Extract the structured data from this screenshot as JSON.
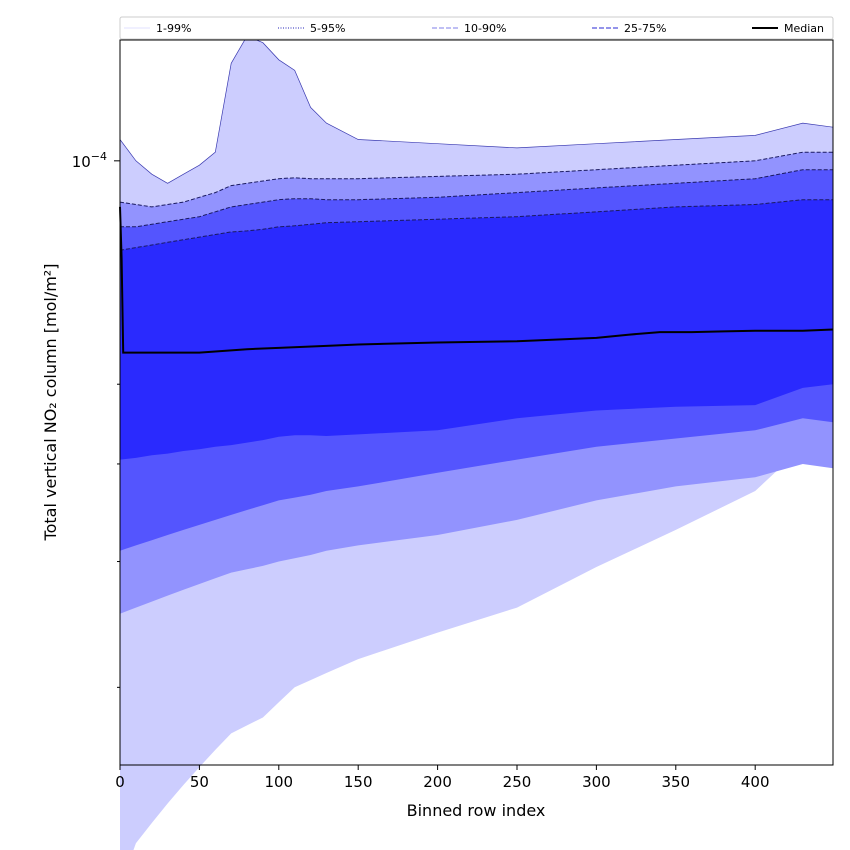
{
  "chart_data": {
    "type": "area",
    "xlabel": "Binned row index",
    "ylabel": "Total vertical NO₂ column [mol/m²]",
    "xlim": [
      0,
      449
    ],
    "ylim_log10": [
      -4.6,
      -3.88
    ],
    "y_scale": "log",
    "y_tick_label": {
      "base": "10",
      "exponent": "−4",
      "value": 0.0001
    },
    "x_ticks": [
      "0",
      "50",
      "100",
      "150",
      "200",
      "250",
      "300",
      "350",
      "400"
    ],
    "legend_placement": "top (above plot)",
    "legend": [
      {
        "label": "1-99%",
        "color": "#e6e6ff",
        "style": "solid"
      },
      {
        "label": "5-95%",
        "color": "#5050c8",
        "style": "dotted"
      },
      {
        "label": "10-90%",
        "color": "#9999ee",
        "style": "dashed"
      },
      {
        "label": "25-75%",
        "color": "#5555dd",
        "style": "dashed"
      },
      {
        "label": "Median",
        "color": "#000000",
        "style": "solid"
      }
    ],
    "x": [
      0,
      10,
      20,
      30,
      40,
      50,
      60,
      70,
      80,
      90,
      100,
      110,
      120,
      130,
      150,
      200,
      250,
      300,
      350,
      400,
      430,
      449
    ],
    "series": [
      {
        "name": "1-99%",
        "fill": "#cccdfe",
        "lower": [
          1.9e-05,
          2.1e-05,
          2.2e-05,
          2.3e-05,
          2.4e-05,
          2.5e-05,
          2.6e-05,
          2.7e-05,
          2.75e-05,
          2.8e-05,
          2.9e-05,
          3e-05,
          3.05e-05,
          3.1e-05,
          3.2e-05,
          3.4e-05,
          3.6e-05,
          3.95e-05,
          4.3e-05,
          4.7e-05,
          5.2e-05,
          5.1e-05
        ],
        "upper": [
          0.000105,
          0.0001,
          9.7e-05,
          9.5e-05,
          9.7e-05,
          9.9e-05,
          0.000102,
          0.000125,
          0.000133,
          0.000131,
          0.000126,
          0.000123,
          0.000113,
          0.000109,
          0.000105,
          0.000104,
          0.000103,
          0.000104,
          0.000105,
          0.000106,
          0.000109,
          0.000108
        ]
      },
      {
        "name": "5-95%",
        "fill": "#9293fe",
        "lower": [
          3.55e-05,
          3.6e-05,
          3.65e-05,
          3.7e-05,
          3.75e-05,
          3.8e-05,
          3.85e-05,
          3.9e-05,
          3.93e-05,
          3.96e-05,
          4e-05,
          4.03e-05,
          4.06e-05,
          4.1e-05,
          4.15e-05,
          4.25e-05,
          4.4e-05,
          4.6e-05,
          4.75e-05,
          4.85e-05,
          5e-05,
          4.95e-05
        ],
        "upper": [
          9.1e-05,
          9.05e-05,
          9e-05,
          9.05e-05,
          9.1e-05,
          9.2e-05,
          9.3e-05,
          9.45e-05,
          9.5e-05,
          9.55e-05,
          9.6e-05,
          9.62e-05,
          9.6e-05,
          9.6e-05,
          9.6e-05,
          9.65e-05,
          9.7e-05,
          9.8e-05,
          9.9e-05,
          0.0001,
          0.000102,
          0.000102
        ]
      },
      {
        "name": "10-90%",
        "fill": "#5455fe",
        "lower": [
          4.1e-05,
          4.15e-05,
          4.2e-05,
          4.25e-05,
          4.3e-05,
          4.35e-05,
          4.4e-05,
          4.45e-05,
          4.5e-05,
          4.55e-05,
          4.6e-05,
          4.63e-05,
          4.66e-05,
          4.7e-05,
          4.75e-05,
          4.9e-05,
          5.05e-05,
          5.2e-05,
          5.3e-05,
          5.4e-05,
          5.55e-05,
          5.5e-05
        ],
        "upper": [
          8.6e-05,
          8.6e-05,
          8.65e-05,
          8.7e-05,
          8.75e-05,
          8.8e-05,
          8.9e-05,
          9e-05,
          9.05e-05,
          9.1e-05,
          9.15e-05,
          9.17e-05,
          9.17e-05,
          9.15e-05,
          9.15e-05,
          9.2e-05,
          9.3e-05,
          9.4e-05,
          9.5e-05,
          9.6e-05,
          9.8e-05,
          9.8e-05
        ]
      },
      {
        "name": "25-75%",
        "fill": "#2a2afe",
        "lower": [
          5.05e-05,
          5.07e-05,
          5.1e-05,
          5.12e-05,
          5.15e-05,
          5.17e-05,
          5.2e-05,
          5.22e-05,
          5.25e-05,
          5.28e-05,
          5.32e-05,
          5.34e-05,
          5.34e-05,
          5.33e-05,
          5.35e-05,
          5.4e-05,
          5.55e-05,
          5.65e-05,
          5.7e-05,
          5.72e-05,
          5.95e-05,
          6e-05
        ],
        "upper": [
          8.15e-05,
          8.2e-05,
          8.25e-05,
          8.3e-05,
          8.35e-05,
          8.4e-05,
          8.45e-05,
          8.5e-05,
          8.52e-05,
          8.55e-05,
          8.6e-05,
          8.62e-05,
          8.65e-05,
          8.68e-05,
          8.7e-05,
          8.75e-05,
          8.8e-05,
          8.9e-05,
          9e-05,
          9.05e-05,
          9.15e-05,
          9.15e-05
        ]
      }
    ],
    "median": {
      "name": "Median",
      "x": [
        0,
        1,
        2,
        20,
        50,
        80,
        100,
        130,
        150,
        200,
        250,
        300,
        320,
        340,
        360,
        380,
        400,
        430,
        449
      ],
      "values": [
        9e-05,
        8e-05,
        6.45e-05,
        6.45e-05,
        6.45e-05,
        6.5e-05,
        6.52e-05,
        6.55e-05,
        6.57e-05,
        6.6e-05,
        6.62e-05,
        6.67e-05,
        6.72e-05,
        6.76e-05,
        6.76e-05,
        6.77e-05,
        6.78e-05,
        6.78e-05,
        6.8e-05
      ]
    }
  }
}
